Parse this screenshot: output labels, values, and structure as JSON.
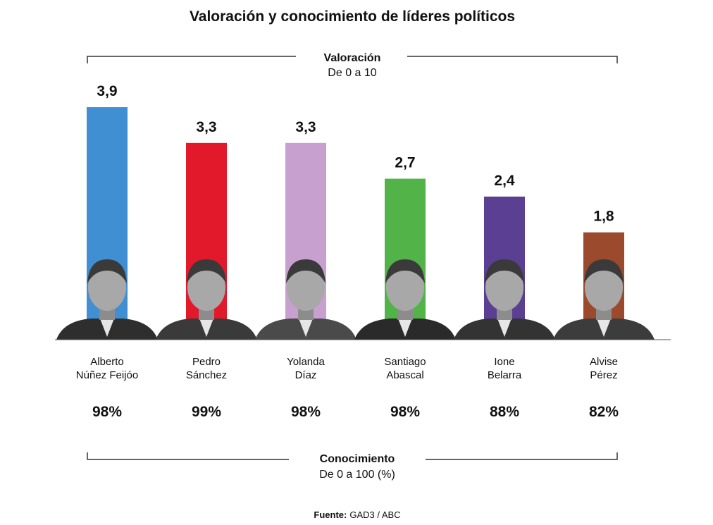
{
  "chart_data": {
    "type": "bar",
    "title": "Valoración y conocimiento de líderes políticos",
    "valoracion_header": "Valoración",
    "valoracion_subheader": "De 0 a 10",
    "conocimiento_header": "Conocimiento",
    "conocimiento_subheader": "De 0 a 100 (%)",
    "source_label": "Fuente:",
    "source_value": "GAD3 / ABC",
    "ylim": [
      0,
      10
    ],
    "categories": [
      {
        "name_line1": "Alberto",
        "name_line2": "Núñez Feijóo",
        "valoracion": 3.9,
        "valoracion_label": "3,9",
        "conocimiento_label": "98%",
        "color": "#3f8fd2",
        "jacket": "#2e2e2e"
      },
      {
        "name_line1": "Pedro",
        "name_line2": "Sánchez",
        "valoracion": 3.3,
        "valoracion_label": "3,3",
        "conocimiento_label": "99%",
        "color": "#e2192a",
        "jacket": "#3a3a3a"
      },
      {
        "name_line1": "Yolanda",
        "name_line2": "Díaz",
        "valoracion": 3.3,
        "valoracion_label": "3,3",
        "conocimiento_label": "98%",
        "color": "#c8a0cf",
        "jacket": "#4a4a4a"
      },
      {
        "name_line1": "Santiago",
        "name_line2": "Abascal",
        "valoracion": 2.7,
        "valoracion_label": "2,7",
        "conocimiento_label": "98%",
        "color": "#52b348",
        "jacket": "#2a2a2a"
      },
      {
        "name_line1": "Ione",
        "name_line2": "Belarra",
        "valoracion": 2.4,
        "valoracion_label": "2,4",
        "conocimiento_label": "88%",
        "color": "#5b3f92",
        "jacket": "#333333"
      },
      {
        "name_line1": "Alvise",
        "name_line2": "Pérez",
        "valoracion": 1.8,
        "valoracion_label": "1,8",
        "conocimiento_label": "82%",
        "color": "#9b4a2e",
        "jacket": "#3c3c3c"
      }
    ]
  }
}
